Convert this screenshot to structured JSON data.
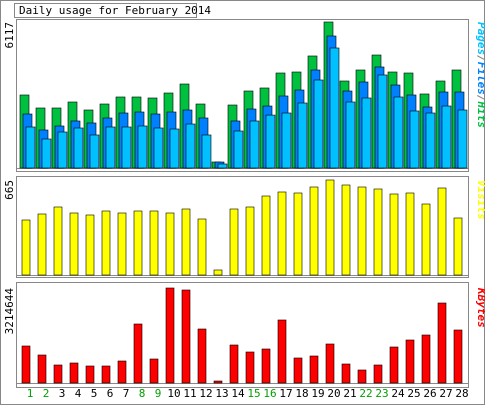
{
  "title": "Daily usage for February 2014",
  "chart_data": [
    {
      "type": "grouped-overlap-bar",
      "series": [
        {
          "name": "Pages",
          "color": "#00c0ff",
          "values": [
            1718,
            1215,
            1508,
            1676,
            1383,
            1718,
            1718,
            1760,
            1676,
            1634,
            1843,
            1383,
            168,
            1550,
            1969,
            2217,
            2304,
            2723,
            3687,
            5028,
            2765,
            2933,
            3897,
            2975,
            2388,
            2304,
            2597,
            2430
          ]
        },
        {
          "name": "Files",
          "color": "#0080ff",
          "values": [
            2262,
            1592,
            1760,
            1970,
            1886,
            2095,
            2304,
            2346,
            2262,
            2346,
            2430,
            2095,
            251,
            1970,
            2472,
            2597,
            3017,
            3268,
            4106,
            5531,
            3226,
            3603,
            4232,
            3477,
            3059,
            2556,
            3184,
            3184
          ]
        },
        {
          "name": "Hits",
          "color": "#00c040",
          "values": [
            3059,
            2514,
            2514,
            2765,
            2430,
            2681,
            2975,
            2975,
            2933,
            3142,
            3519,
            2681,
            251,
            2639,
            3226,
            3352,
            3980,
            4022,
            4693,
            6117,
            3645,
            4106,
            4734,
            4022,
            3980,
            3101,
            3645,
            4106
          ]
        }
      ],
      "legend_separator": "/",
      "ylim": [
        0,
        6117
      ],
      "yticks": [
        6117
      ]
    },
    {
      "type": "bar",
      "series": [
        {
          "name": "Visits",
          "color": "#ffff00",
          "values": [
            385,
            427,
            476,
            434,
            420,
            448,
            434,
            448,
            448,
            434,
            462,
            392,
            35,
            462,
            476,
            553,
            581,
            574,
            616,
            665,
            630,
            616,
            602,
            567,
            574,
            497,
            609,
            399
          ]
        }
      ],
      "ylim": [
        0,
        665
      ],
      "yticks": [
        665
      ]
    },
    {
      "type": "bar",
      "series": [
        {
          "name": "KBytes",
          "color": "#ff0000",
          "values": [
            1252006,
            947464,
            609084,
            676760,
            575246,
            575246,
            744436,
            1996442,
            812112,
            3214644,
            3146934,
            1827252,
            67676,
            1285844,
            1048978,
            1150492,
            2131794,
            845950,
            913626,
            1319682,
            642922,
            439894,
            609084,
            1218168,
            1455034,
            1624224,
            2707040,
            1793414
          ]
        }
      ],
      "ylim": [
        0,
        3214644
      ],
      "yticks": [
        3214644
      ],
      "categories": [
        "1",
        "2",
        "3",
        "4",
        "5",
        "6",
        "7",
        "8",
        "9",
        "10",
        "11",
        "12",
        "13",
        "14",
        "15",
        "16",
        "17",
        "18",
        "19",
        "20",
        "21",
        "22",
        "23",
        "24",
        "25",
        "26",
        "27",
        "28"
      ],
      "category_colors": [
        "#00a000",
        "#00a000",
        "#000000",
        "#000000",
        "#000000",
        "#000000",
        "#000000",
        "#00a000",
        "#00a000",
        "#000000",
        "#000000",
        "#000000",
        "#000000",
        "#000000",
        "#00a000",
        "#00a000",
        "#000000",
        "#000000",
        "#000000",
        "#000000",
        "#000000",
        "#00a000",
        "#00a000",
        "#000000",
        "#000000",
        "#000000",
        "#000000",
        "#000000"
      ]
    }
  ]
}
